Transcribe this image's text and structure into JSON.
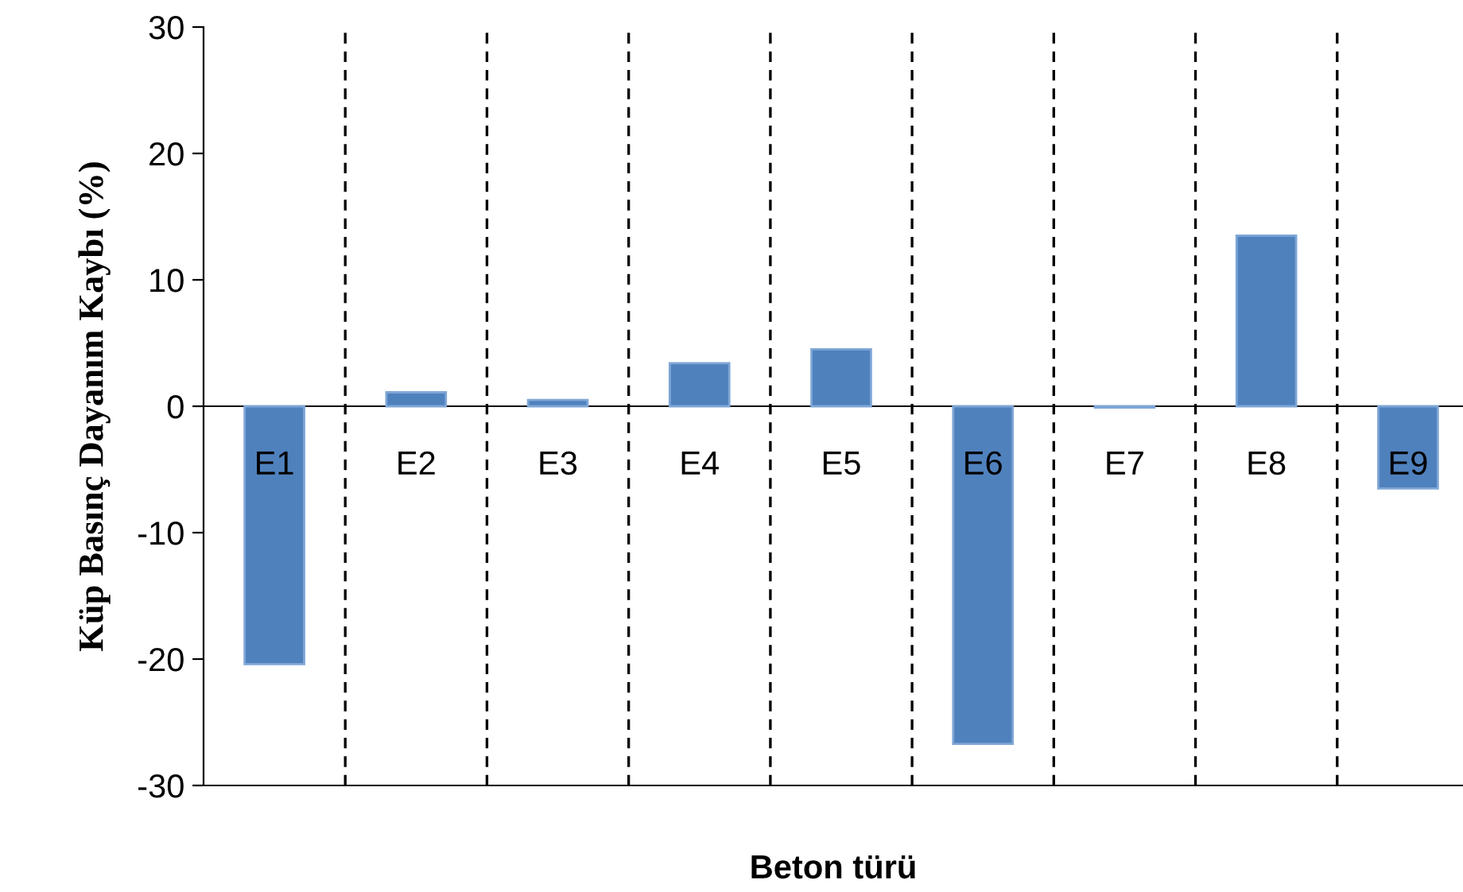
{
  "chart_data": {
    "type": "bar",
    "xlabel": "Beton türü",
    "ylabel": "Küp Basınç Dayanım Kaybı (%)",
    "categories": [
      "E1",
      "E2",
      "E3",
      "E4",
      "E5",
      "E6",
      "E7",
      "E8",
      "E9"
    ],
    "values": [
      -20.4,
      1.1,
      0.5,
      3.4,
      4.5,
      -26.7,
      -0.1,
      13.5,
      -6.5
    ],
    "color": "#4f81bd",
    "ylim": [
      -30,
      30
    ],
    "yticks": [
      -30,
      -20,
      -10,
      0,
      10,
      20,
      30
    ],
    "grid": "x"
  }
}
